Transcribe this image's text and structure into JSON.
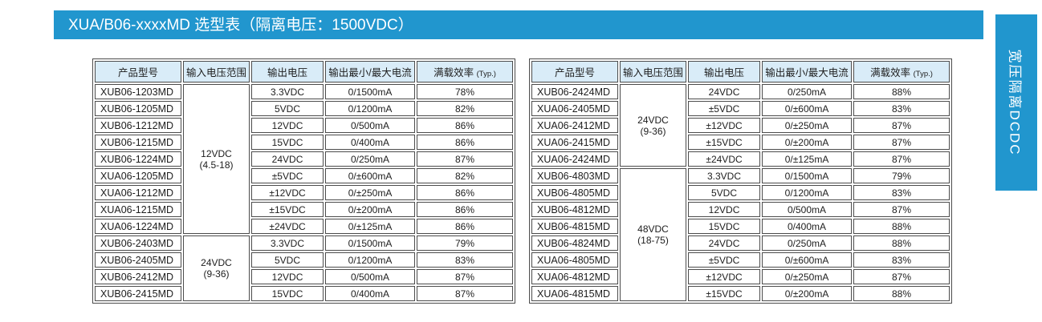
{
  "title": "XUA/B06-xxxxMD 选型表（隔离电压：1500VDC）",
  "side_tab": "宽压隔离DCDC",
  "columns": [
    "产品型号",
    "输入电压范围",
    "输出电压",
    "输出最小/最大电流",
    "满载效率"
  ],
  "efficiency_suffix": "(Typ.)",
  "colors": {
    "accent_blue": "#2196ce",
    "header_bg": "#d9ecf8",
    "border": "#4c4c4c"
  },
  "tables": [
    {
      "groups": [
        {
          "input": "12VDC",
          "input_range": "(4.5-18)",
          "rows": [
            [
              "XUB06-1203MD",
              "3.3VDC",
              "0/1500mA",
              "78%"
            ],
            [
              "XUB06-1205MD",
              "5VDC",
              "0/1200mA",
              "82%"
            ],
            [
              "XUB06-1212MD",
              "12VDC",
              "0/500mA",
              "86%"
            ],
            [
              "XUB06-1215MD",
              "15VDC",
              "0/400mA",
              "86%"
            ],
            [
              "XUB06-1224MD",
              "24VDC",
              "0/250mA",
              "87%"
            ],
            [
              "XUA06-1205MD",
              "±5VDC",
              "0/±600mA",
              "82%"
            ],
            [
              "XUA06-1212MD",
              "±12VDC",
              "0/±250mA",
              "86%"
            ],
            [
              "XUA06-1215MD",
              "±15VDC",
              "0/±200mA",
              "86%"
            ],
            [
              "XUA06-1224MD",
              "±24VDC",
              "0/±125mA",
              "86%"
            ]
          ]
        },
        {
          "input": "24VDC",
          "input_range": "(9-36)",
          "rows": [
            [
              "XUB06-2403MD",
              "3.3VDC",
              "0/1500mA",
              "79%"
            ],
            [
              "XUB06-2405MD",
              "5VDC",
              "0/1200mA",
              "83%"
            ],
            [
              "XUB06-2412MD",
              "12VDC",
              "0/500mA",
              "87%"
            ],
            [
              "XUB06-2415MD",
              "15VDC",
              "0/400mA",
              "87%"
            ]
          ]
        }
      ]
    },
    {
      "groups": [
        {
          "input": "24VDC",
          "input_range": "(9-36)",
          "rows": [
            [
              "XUB06-2424MD",
              "24VDC",
              "0/250mA",
              "88%"
            ],
            [
              "XUA06-2405MD",
              "±5VDC",
              "0/±600mA",
              "83%"
            ],
            [
              "XUA06-2412MD",
              "±12VDC",
              "0/±250mA",
              "87%"
            ],
            [
              "XUA06-2415MD",
              "±15VDC",
              "0/±200mA",
              "87%"
            ],
            [
              "XUA06-2424MD",
              "±24VDC",
              "0/±125mA",
              "87%"
            ]
          ]
        },
        {
          "input": "48VDC",
          "input_range": "(18-75)",
          "rows": [
            [
              "XUB06-4803MD",
              "3.3VDC",
              "0/1500mA",
              "79%"
            ],
            [
              "XUB06-4805MD",
              "5VDC",
              "0/1200mA",
              "83%"
            ],
            [
              "XUB06-4812MD",
              "12VDC",
              "0/500mA",
              "87%"
            ],
            [
              "XUB06-4815MD",
              "15VDC",
              "0/400mA",
              "88%"
            ],
            [
              "XUB06-4824MD",
              "24VDC",
              "0/250mA",
              "88%"
            ],
            [
              "XUA06-4805MD",
              "±5VDC",
              "0/±600mA",
              "83%"
            ],
            [
              "XUA06-4812MD",
              "±12VDC",
              "0/±250mA",
              "87%"
            ],
            [
              "XUA06-4815MD",
              "±15VDC",
              "0/±200mA",
              "88%"
            ]
          ]
        }
      ]
    }
  ]
}
